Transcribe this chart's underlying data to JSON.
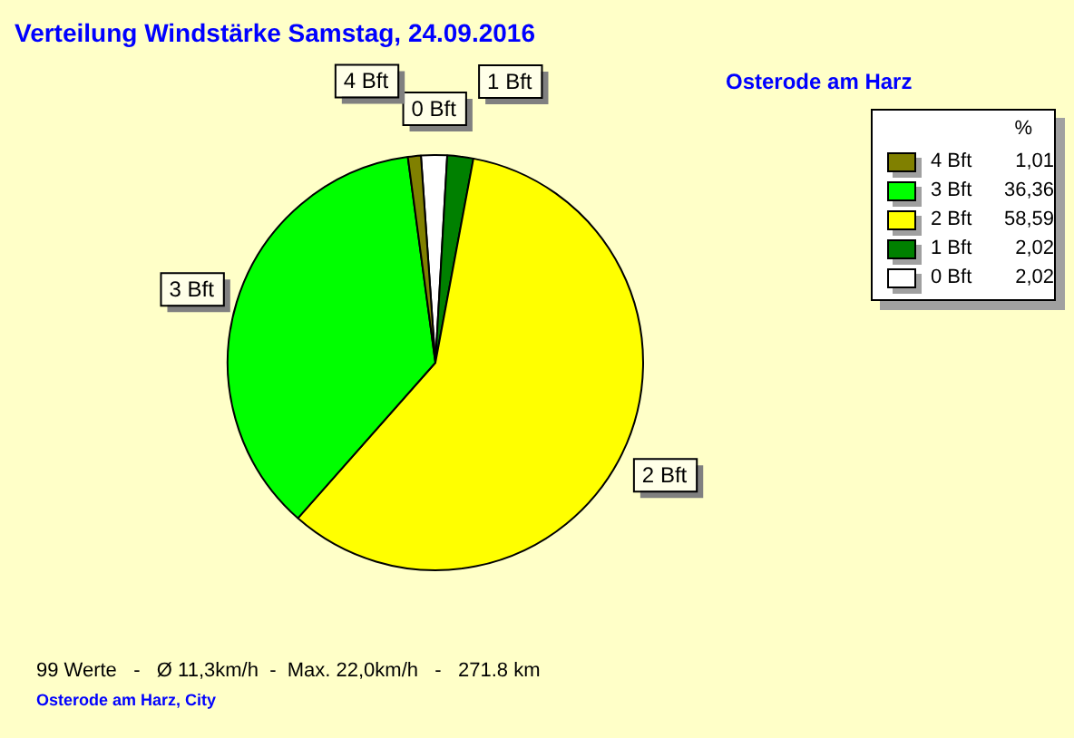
{
  "chart_data": {
    "type": "pie",
    "title": "Verteilung Windstärke  Samstag, 24.09.2016",
    "subtitle": "Osterode am Harz",
    "categories": [
      "4 Bft",
      "3 Bft",
      "2 Bft",
      "1 Bft",
      "0 Bft"
    ],
    "values": [
      1.01,
      36.36,
      58.59,
      2.02,
      2.02
    ],
    "value_labels": [
      "1,01",
      "36,36",
      "58,59",
      "2,02",
      "2,02"
    ],
    "colors": [
      "#808000",
      "#00ff00",
      "#ffff00",
      "#008000",
      "#ffffff"
    ],
    "legend": "top right",
    "legend_title": "%",
    "annotations": [
      "99 Werte   -   Ø 11,3km/h  -  Max. 22,0km/h   -   271.8 km",
      "Osterode am Harz, City"
    ]
  }
}
